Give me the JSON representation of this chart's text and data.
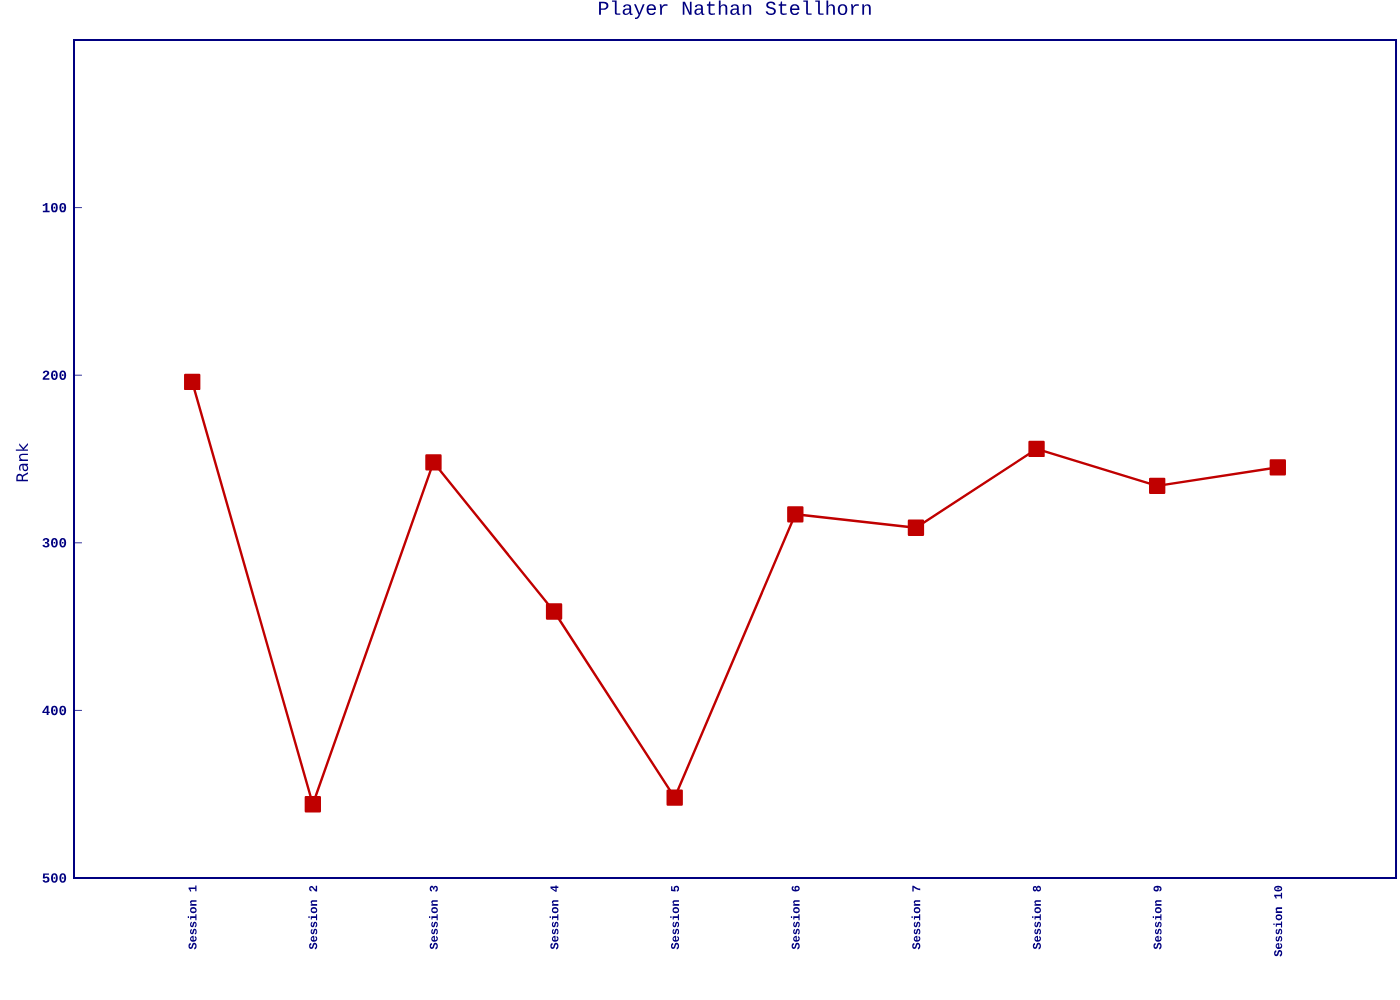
{
  "chart_data": {
    "type": "line",
    "title": "Player Nathan Stellhorn",
    "ylabel": "Rank",
    "categories": [
      "Session 1",
      "Session 2",
      "Session 3",
      "Session 4",
      "Session 5",
      "Session 6",
      "Session 7",
      "Session 8",
      "Session 9",
      "Session 10"
    ],
    "series": [
      {
        "color": "#c00000",
        "values": [
          204,
          456,
          252,
          341,
          452,
          283,
          291,
          244,
          266,
          255
        ]
      }
    ],
    "ylim": [
      500,
      0
    ],
    "yticks": [
      100,
      200,
      300,
      400,
      500
    ],
    "marker": "square",
    "line_style": "solid"
  }
}
